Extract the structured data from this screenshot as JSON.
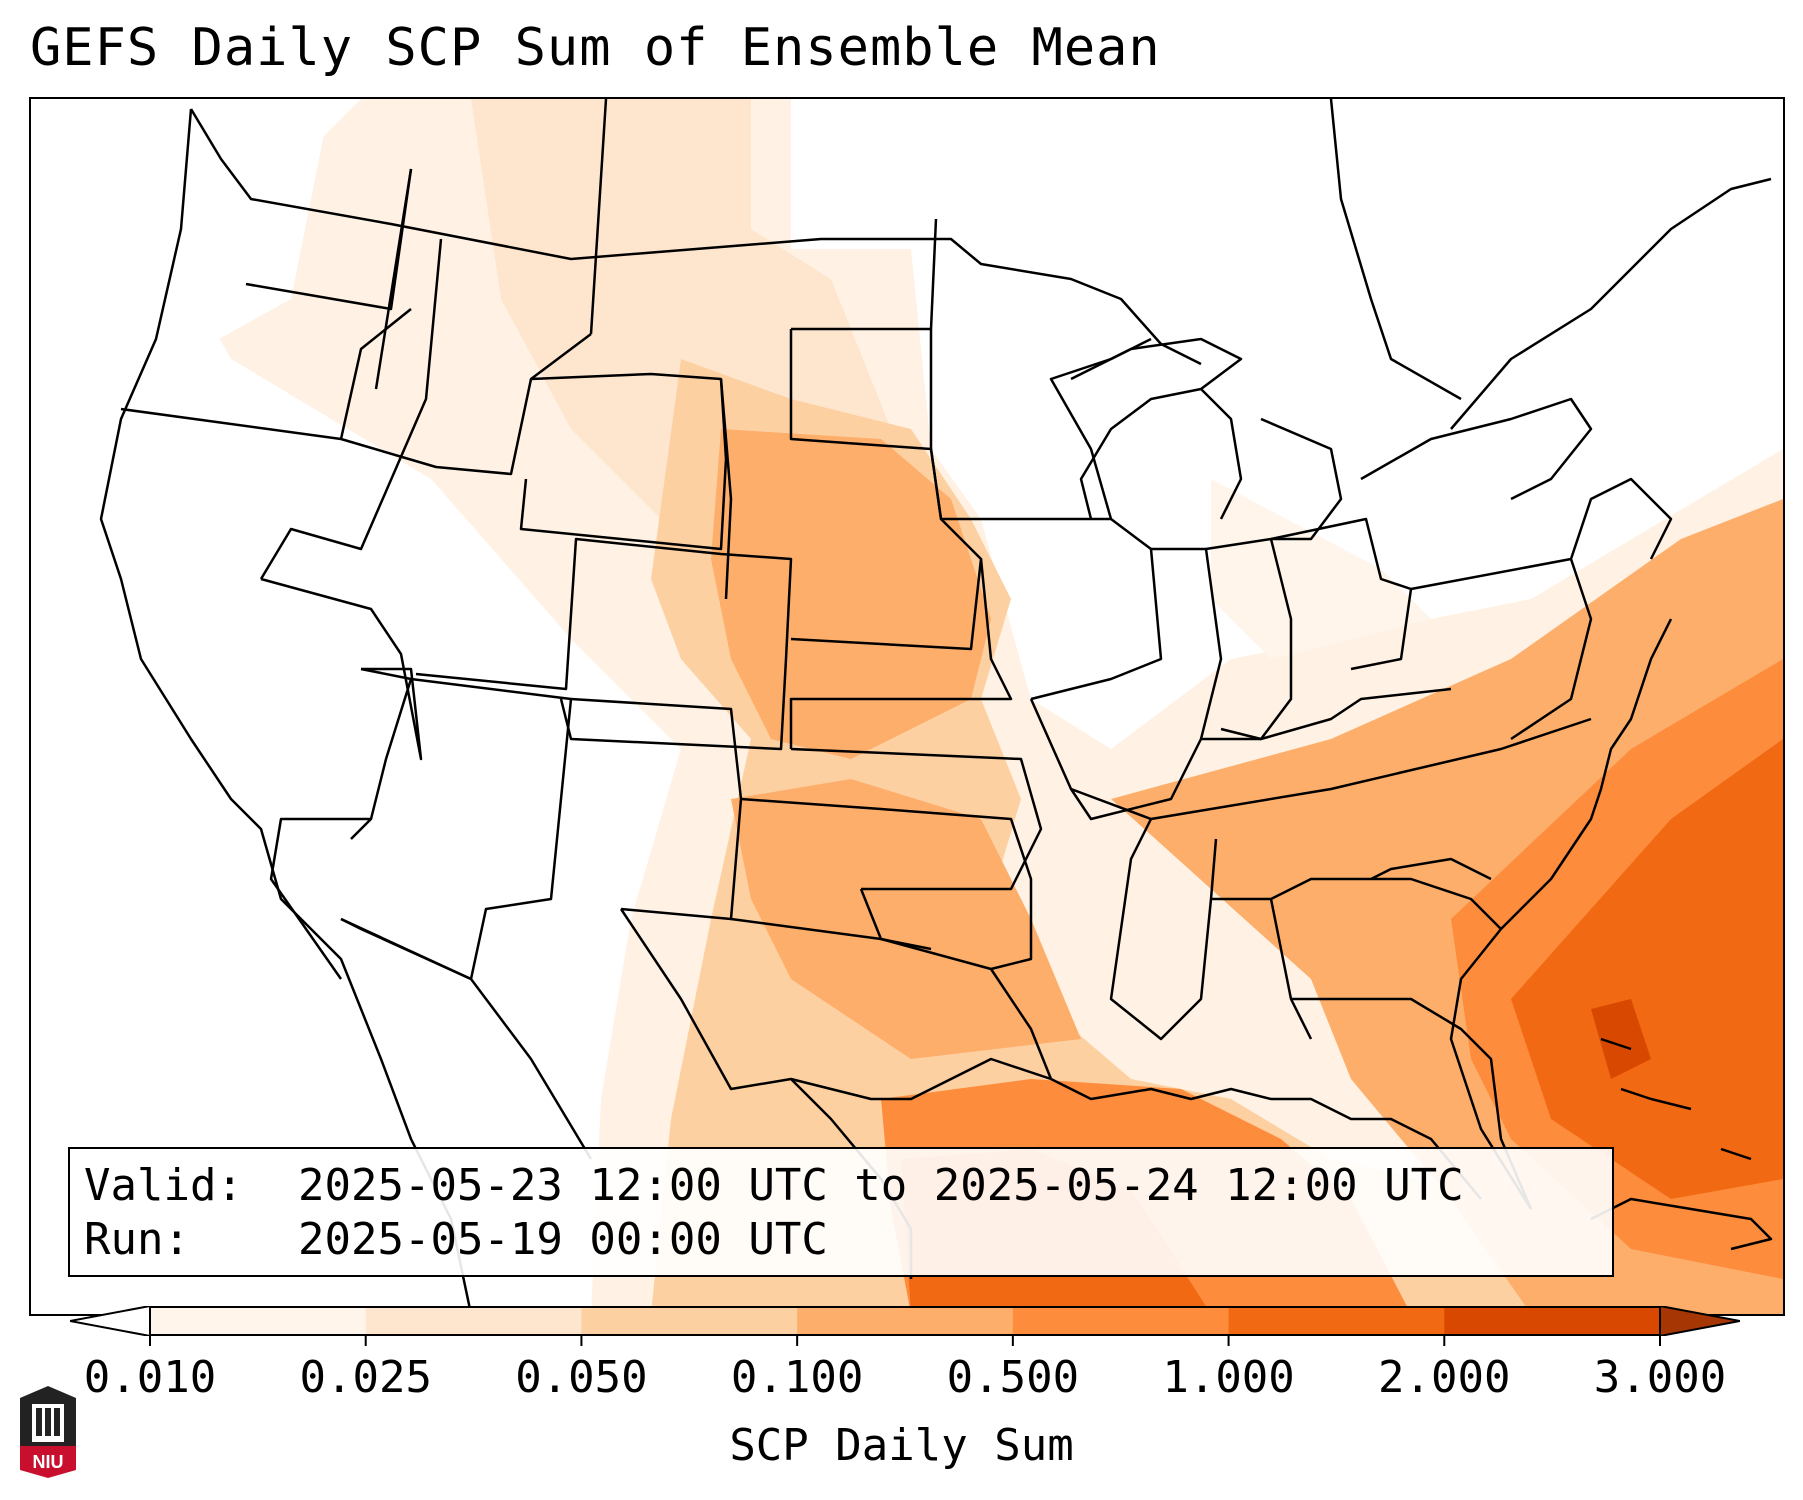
{
  "title": "GEFS Daily SCP Sum of Ensemble Mean",
  "info": {
    "valid_label": "Valid:",
    "valid_value": "2025-05-23 12:00 UTC to 2025-05-24 12:00 UTC",
    "run_label": "Run:",
    "run_value": "2025-05-19 00:00 UTC"
  },
  "colorbar": {
    "label": "SCP Daily Sum",
    "ticks": [
      "0.010",
      "0.025",
      "0.050",
      "0.100",
      "0.500",
      "1.000",
      "2.000",
      "3.000"
    ],
    "colors": [
      "#fff5eb",
      "#fee6ce",
      "#fdd0a2",
      "#fdae6b",
      "#fd8d3c",
      "#f16913",
      "#d94801",
      "#a63603"
    ],
    "extend": "both"
  },
  "logo": {
    "text": "NIU",
    "colors": {
      "red": "#c8102e",
      "dark": "#222222"
    }
  },
  "map": {
    "projection": "Lambert Conformal",
    "region": "CONUS",
    "field": "SCP daily sum, ensemble mean",
    "max_region": "off Southeast coast / Bahamas",
    "secondary_max": "western Gulf of Mexico and central Plains"
  }
}
